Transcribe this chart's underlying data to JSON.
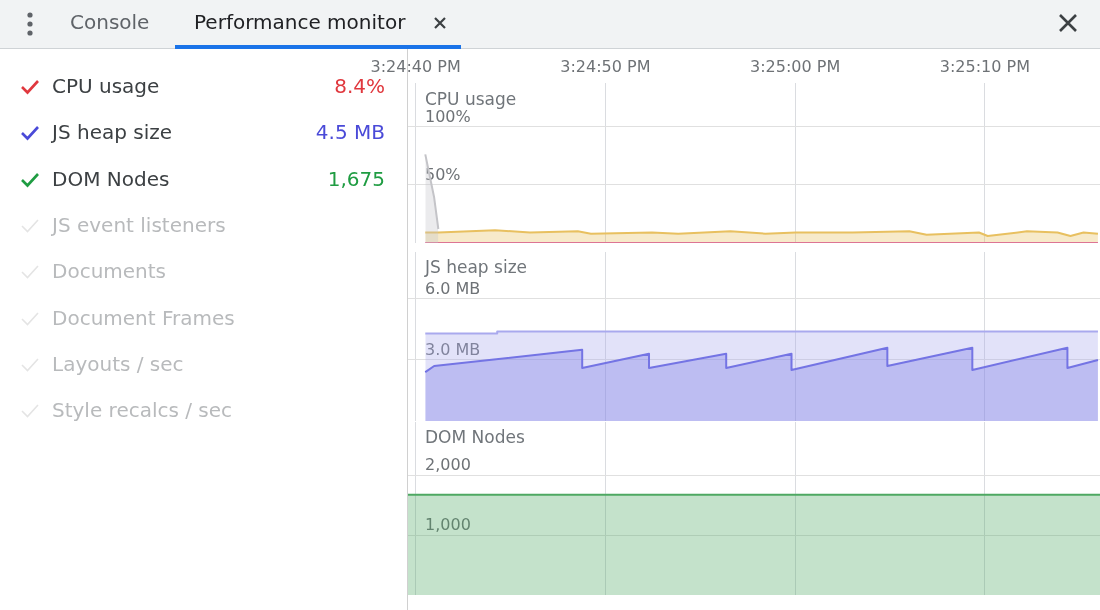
{
  "chart_data": [
    {
      "type": "other",
      "annotations": [
        "Console",
        "Performance monitor"
      ],
      "categories": [
        "CPU usage",
        "JS heap size",
        "DOM Nodes",
        "JS event listeners",
        "Documents",
        "Document Frames",
        "Layouts / sec",
        "Style recalcs / sec"
      ],
      "value_labels": [
        "8.4%",
        "4.5 MB",
        "1,675",
        null,
        null,
        null,
        null,
        null
      ],
      "colors": [
        "#e0383e",
        "#4a4ad8",
        "#1f9c42",
        null,
        null,
        null,
        null,
        null
      ]
    },
    {
      "type": "area",
      "title": "CPU usage",
      "xlim": [
        15.411,
        15.42113
      ],
      "xticks": [
        {
          "value": 15.411111,
          "label": "3:24:40 PM"
        },
        {
          "value": 15.413889,
          "label": "3:24:50 PM"
        },
        {
          "value": 15.416667,
          "label": "3:25:00 PM"
        },
        {
          "value": 15.419444,
          "label": "3:25:10 PM"
        }
      ],
      "ylim": [
        0,
        137
      ],
      "yticks": [
        {
          "value": 50,
          "label": "50%"
        },
        {
          "value": 100,
          "label": "100%"
        }
      ],
      "grid": true,
      "series": [
        {
          "type": "area",
          "color": "#c4c4c8",
          "x": [
            15.411253,
            15.411383,
            15.411444
          ],
          "values": [
            76,
            39,
            12
          ]
        },
        {
          "type": "area",
          "color": "#e8c060",
          "x": [
            15.411253,
            15.411444,
            15.412275,
            15.412786,
            15.413486,
            15.413678,
            15.414572,
            15.414956,
            15.415719,
            15.416231,
            15.416678,
            15.417508,
            15.418339,
            15.418592,
            15.419358,
            15.419486,
            15.420061,
            15.420508,
            15.420697,
            15.420889,
            15.4211
          ],
          "values": [
            9,
            9,
            11,
            9,
            10,
            8,
            9,
            8,
            10,
            8,
            9,
            9,
            10,
            7,
            9,
            6,
            10,
            9,
            6,
            9,
            8
          ]
        },
        {
          "type": "line",
          "color": "#d94fae",
          "x": [
            15.411253,
            15.4211
          ],
          "values": [
            0,
            0
          ]
        }
      ]
    },
    {
      "type": "area",
      "title": "JS heap size",
      "xlim": [
        15.411,
        15.42113
      ],
      "xticks": [
        {
          "value": 15.411111,
          "label": null
        },
        {
          "value": 15.413889,
          "label": null
        },
        {
          "value": 15.416667,
          "label": null
        },
        {
          "value": 15.419444,
          "label": null
        }
      ],
      "ylim": [
        0,
        8.3
      ],
      "yticks": [
        {
          "value": 3,
          "label": "3.0 MB"
        },
        {
          "value": 6,
          "label": "6.0 MB"
        }
      ],
      "grid": true,
      "tick_labels": "y",
      "series": [
        {
          "type": "area",
          "color": "#a9a9ee",
          "x": [
            15.411253,
            15.412306,
            15.412306,
            15.4211
          ],
          "values": [
            4.3,
            4.3,
            4.4,
            4.4
          ]
        },
        {
          "type": "area",
          "color": "#5a5ae0",
          "x": [
            15.411253,
            15.411383,
            15.41355,
            15.41355,
            15.414528,
            15.414528,
            15.415658,
            15.415658,
            15.416614,
            15.416614,
            15.418017,
            15.418017,
            15.419261,
            15.419261,
            15.420653,
            15.420653,
            15.4211
          ],
          "values": [
            2.4,
            2.7,
            3.5,
            2.6,
            3.3,
            2.6,
            3.3,
            2.6,
            3.3,
            2.5,
            3.6,
            2.7,
            3.6,
            2.5,
            3.6,
            2.6,
            3.0
          ]
        }
      ]
    },
    {
      "type": "area",
      "title": "DOM Nodes",
      "xlim": [
        15.411,
        15.42113
      ],
      "xticks": [
        {
          "value": 15.411111,
          "label": null
        },
        {
          "value": 15.413889,
          "label": null
        },
        {
          "value": 15.416667,
          "label": null
        },
        {
          "value": 15.419444,
          "label": null
        }
      ],
      "ylim": [
        0,
        2890
      ],
      "yticks": [
        {
          "value": 1000,
          "label": "1,000"
        },
        {
          "value": 2000,
          "label": "2,000"
        }
      ],
      "grid": true,
      "tick_labels": "y",
      "series": [
        {
          "type": "area",
          "color": "#4ea862",
          "x": [
            15.411,
            15.42113
          ],
          "values": [
            1675,
            1675
          ]
        }
      ]
    }
  ]
}
